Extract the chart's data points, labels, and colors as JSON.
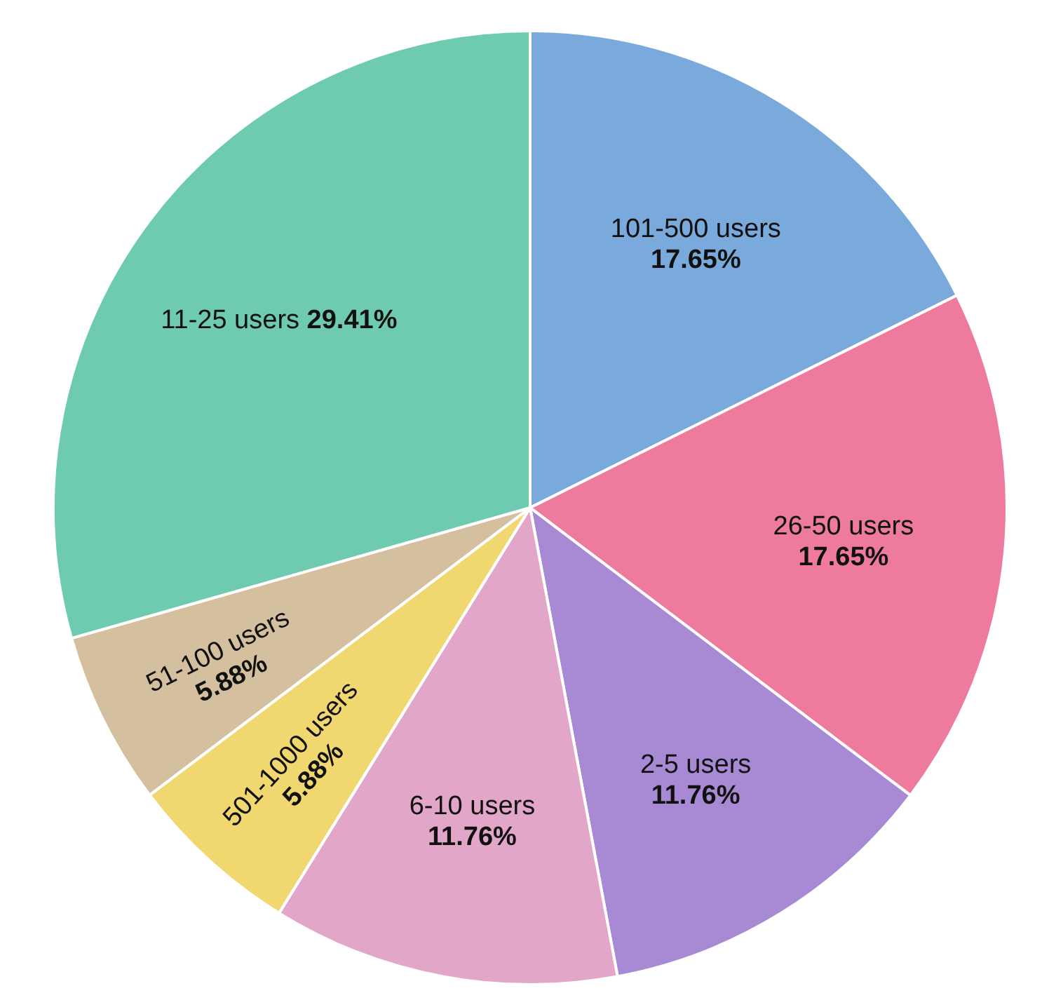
{
  "chart_data": {
    "type": "pie",
    "categories": [
      "101-500 users",
      "26-50 users",
      "2-5 users",
      "6-10 users",
      "501-1000 users",
      "51-100 users",
      "11-25 users"
    ],
    "values": [
      17.65,
      17.65,
      11.76,
      11.76,
      5.88,
      5.88,
      29.41
    ],
    "value_labels": [
      "17.65%",
      "17.65%",
      "11.76%",
      "11.76%",
      "5.88%",
      "5.88%",
      "29.41%"
    ],
    "colors": [
      "#7aaadb",
      "#ee7a9e",
      "#a88ad4",
      "#e2a6c8",
      "#f0d770",
      "#d4c09e",
      "#6ecbb0"
    ]
  }
}
